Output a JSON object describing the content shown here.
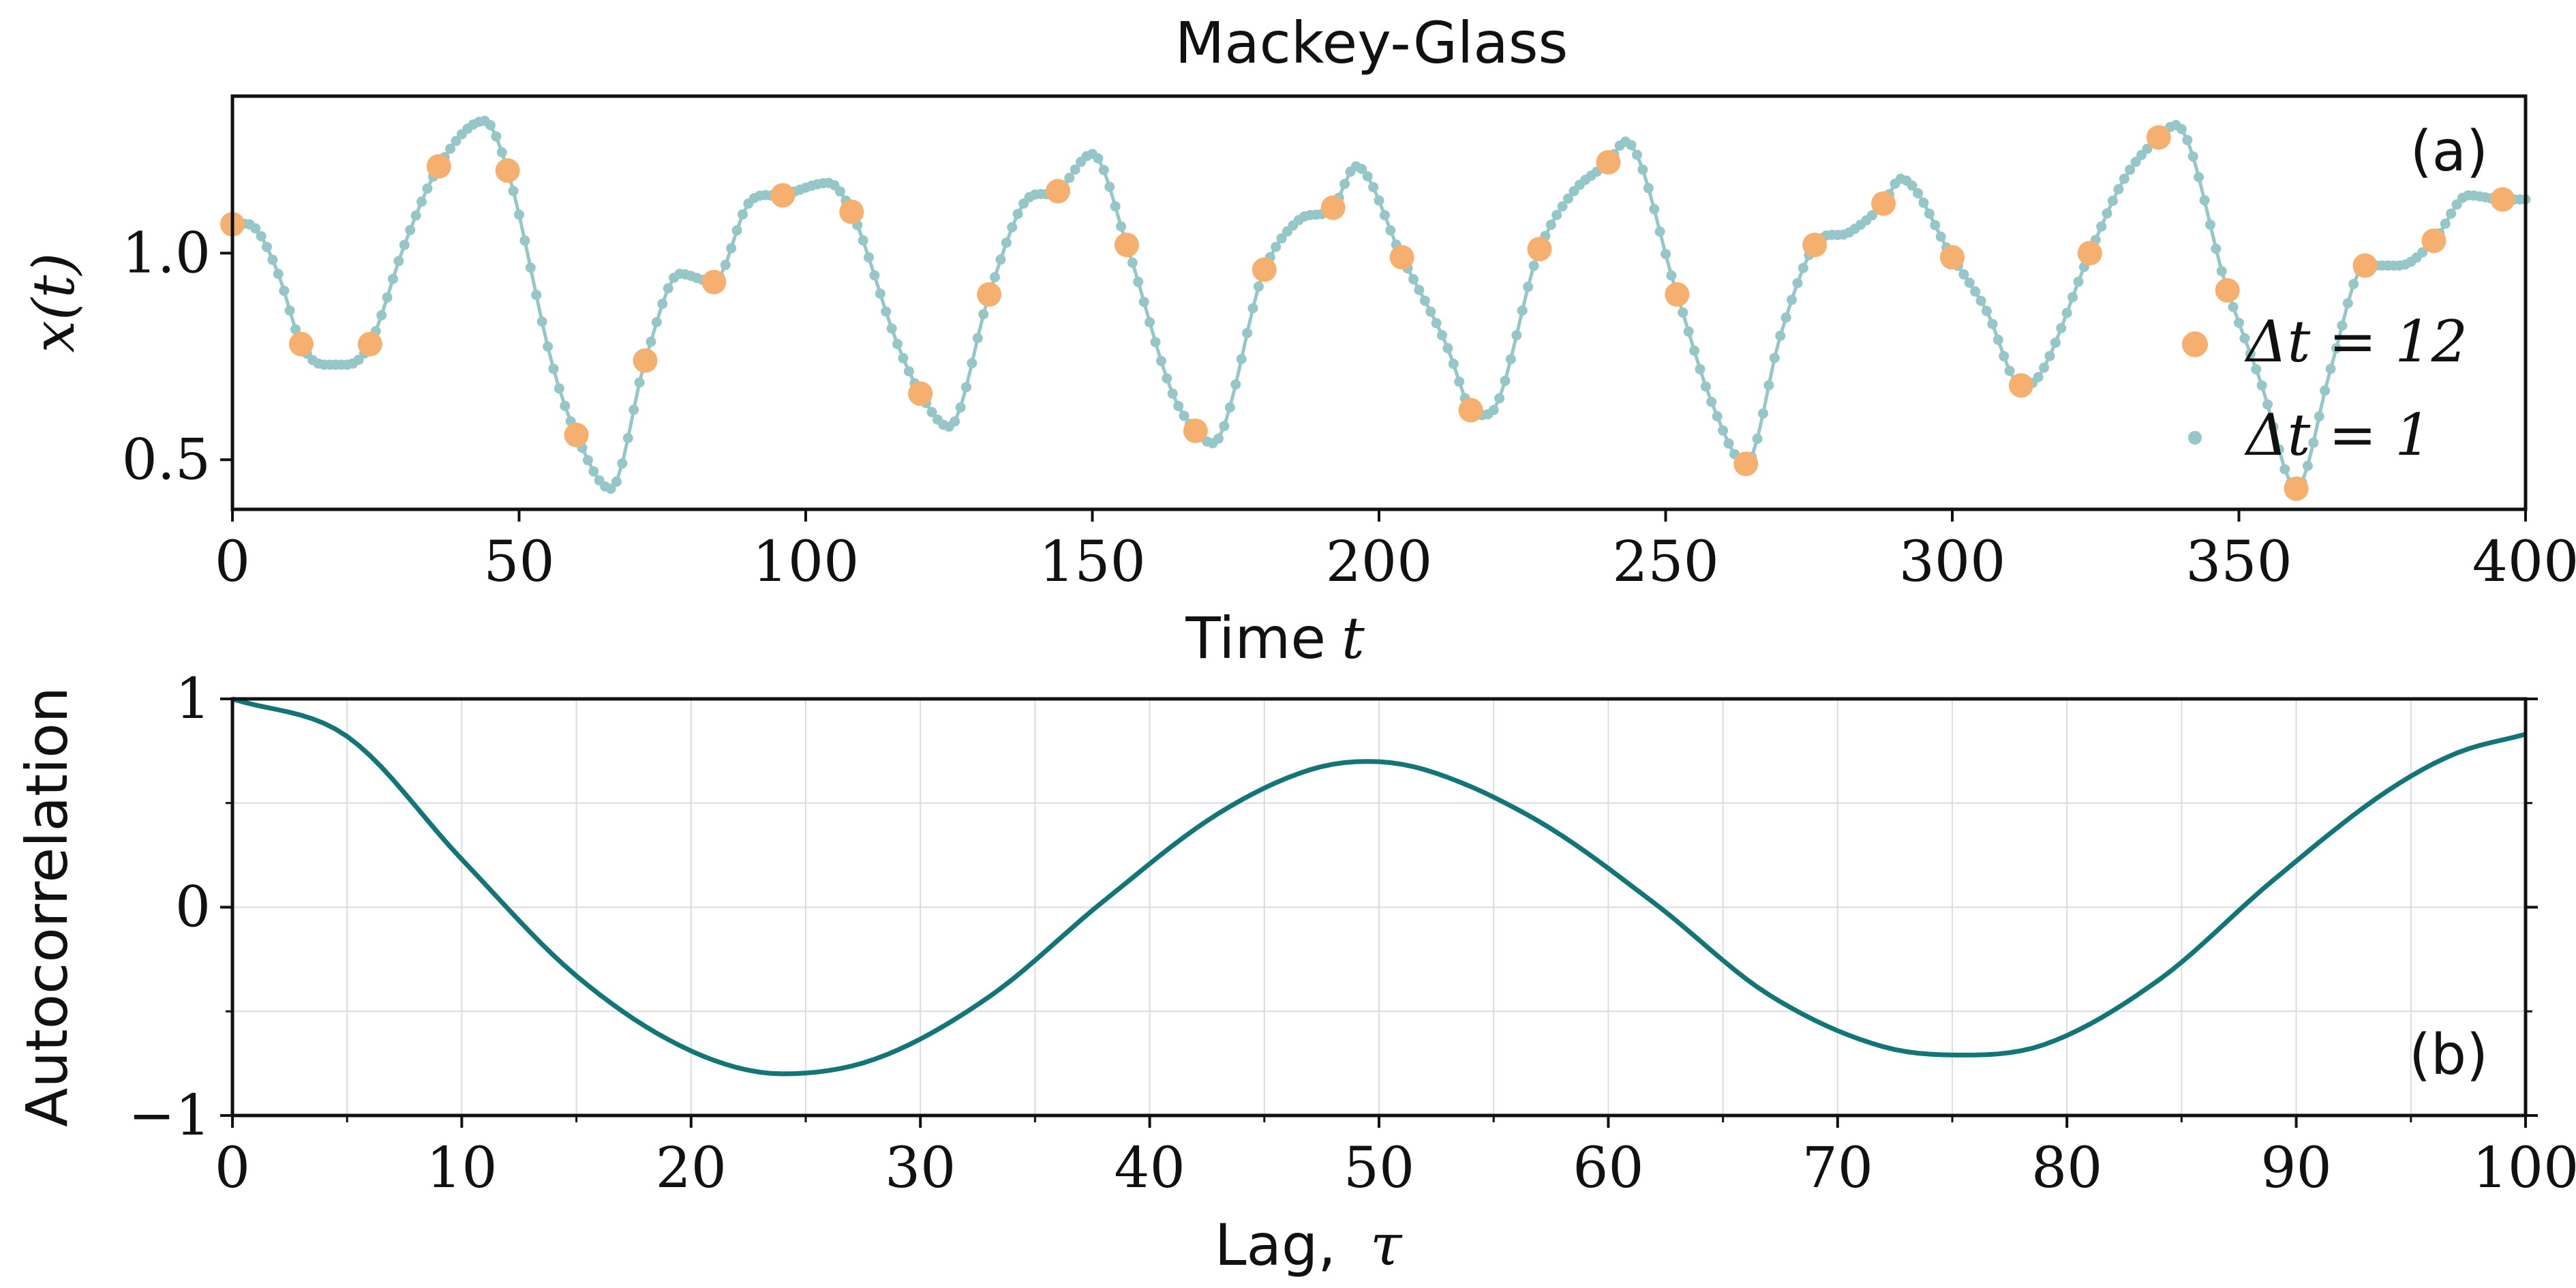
{
  "chart_data": [
    {
      "type": "scatter",
      "title": "Mackey-Glass",
      "panel_label": "(a)",
      "xlabel": "Time",
      "xlabel_var": "t",
      "ylabel": "x(t)",
      "xlim": [
        0,
        400
      ],
      "ylim": [
        0.38,
        1.38
      ],
      "xticks": [
        0,
        50,
        100,
        150,
        200,
        250,
        300,
        350,
        400
      ],
      "xtick_labels": [
        "0",
        "50",
        "100",
        "150",
        "200",
        "250",
        "300",
        "350",
        "400"
      ],
      "yticks": [
        0.5,
        1.0
      ],
      "ytick_labels": [
        "0.5",
        "1.0"
      ],
      "legend_position": "right",
      "series": [
        {
          "name": "Δt = 12",
          "legend_label": "Δt = 12",
          "color": "#f5b06f",
          "marker": "circle",
          "x": [
            0,
            12,
            24,
            36,
            48,
            60,
            72,
            84,
            96,
            108,
            120,
            132,
            144,
            156,
            168,
            180,
            192,
            204,
            216,
            228,
            240,
            252,
            264,
            276,
            288,
            300,
            312,
            324,
            336,
            348,
            360,
            372,
            384,
            396
          ],
          "y": [
            1.07,
            0.78,
            0.78,
            1.21,
            1.2,
            0.56,
            0.74,
            0.93,
            1.14,
            1.1,
            0.66,
            0.9,
            1.15,
            1.02,
            0.57,
            0.96,
            1.11,
            0.99,
            0.62,
            1.01,
            1.22,
            0.9,
            0.49,
            1.02,
            1.12,
            0.99,
            0.68,
            1.0,
            1.28,
            0.91,
            0.43,
            0.97,
            1.03,
            1.13
          ]
        },
        {
          "name": "Δt = 1",
          "legend_label": "Δt = 1",
          "color": "#96c7c8",
          "marker": "small-circle-line",
          "x_start": 0,
          "x_end": 400,
          "x_step": 1,
          "keypoints": [
            [
              0,
              1.07
            ],
            [
              4,
              1.06
            ],
            [
              8,
              0.95
            ],
            [
              12,
              0.78
            ],
            [
              16,
              0.73
            ],
            [
              20,
              0.73
            ],
            [
              24,
              0.78
            ],
            [
              30,
              1.02
            ],
            [
              36,
              1.21
            ],
            [
              44,
              1.32
            ],
            [
              48,
              1.2
            ],
            [
              56,
              0.72
            ],
            [
              60,
              0.56
            ],
            [
              66,
              0.43
            ],
            [
              72,
              0.74
            ],
            [
              78,
              0.95
            ],
            [
              84,
              0.93
            ],
            [
              90,
              1.12
            ],
            [
              96,
              1.14
            ],
            [
              104,
              1.17
            ],
            [
              108,
              1.1
            ],
            [
              116,
              0.78
            ],
            [
              120,
              0.66
            ],
            [
              125,
              0.58
            ],
            [
              132,
              0.9
            ],
            [
              138,
              1.12
            ],
            [
              144,
              1.15
            ],
            [
              150,
              1.24
            ],
            [
              156,
              1.02
            ],
            [
              164,
              0.66
            ],
            [
              168,
              0.57
            ],
            [
              171,
              0.54
            ],
            [
              180,
              0.96
            ],
            [
              186,
              1.08
            ],
            [
              192,
              1.11
            ],
            [
              196,
              1.21
            ],
            [
              204,
              0.99
            ],
            [
              212,
              0.77
            ],
            [
              216,
              0.62
            ],
            [
              219,
              0.61
            ],
            [
              228,
              1.01
            ],
            [
              234,
              1.15
            ],
            [
              240,
              1.22
            ],
            [
              243,
              1.27
            ],
            [
              252,
              0.9
            ],
            [
              258,
              0.64
            ],
            [
              264,
              0.49
            ],
            [
              270,
              0.8
            ],
            [
              276,
              1.02
            ],
            [
              282,
              1.05
            ],
            [
              288,
              1.12
            ],
            [
              291,
              1.18
            ],
            [
              300,
              0.99
            ],
            [
              306,
              0.86
            ],
            [
              312,
              0.68
            ],
            [
              315,
              0.7
            ],
            [
              324,
              1.0
            ],
            [
              330,
              1.18
            ],
            [
              336,
              1.28
            ],
            [
              339,
              1.31
            ],
            [
              348,
              0.91
            ],
            [
              354,
              0.68
            ],
            [
              360,
              0.43
            ],
            [
              366,
              0.72
            ],
            [
              372,
              0.97
            ],
            [
              378,
              0.97
            ],
            [
              384,
              1.03
            ],
            [
              390,
              1.14
            ],
            [
              396,
              1.13
            ],
            [
              400,
              1.13
            ]
          ]
        }
      ]
    },
    {
      "type": "line",
      "panel_label": "(b)",
      "xlabel": "Lag,",
      "xlabel_var": "τ",
      "ylabel": "Autocorrelation",
      "xlim": [
        0,
        100
      ],
      "ylim": [
        -1,
        1
      ],
      "xticks": [
        0,
        10,
        20,
        30,
        40,
        50,
        60,
        70,
        80,
        90,
        100
      ],
      "xtick_labels": [
        "0",
        "10",
        "20",
        "30",
        "40",
        "50",
        "60",
        "70",
        "80",
        "90",
        "100"
      ],
      "yticks": [
        -1,
        0,
        1
      ],
      "ytick_labels": [
        "−1",
        "0",
        "1"
      ],
      "grid": true,
      "series": [
        {
          "name": "autocorrelation",
          "color": "#127577",
          "x_step": 0.5,
          "keypoints": [
            [
              0,
              1.0
            ],
            [
              5,
              0.82
            ],
            [
              10,
              0.23
            ],
            [
              15,
              -0.33
            ],
            [
              20,
              -0.69
            ],
            [
              24,
              -0.8
            ],
            [
              28,
              -0.73
            ],
            [
              33,
              -0.43
            ],
            [
              38,
              0.03
            ],
            [
              43,
              0.45
            ],
            [
              47,
              0.66
            ],
            [
              49.5,
              0.7
            ],
            [
              52,
              0.66
            ],
            [
              57,
              0.41
            ],
            [
              62,
              0.02
            ],
            [
              67,
              -0.42
            ],
            [
              72,
              -0.67
            ],
            [
              75.5,
              -0.71
            ],
            [
              79,
              -0.66
            ],
            [
              84,
              -0.35
            ],
            [
              89,
              0.13
            ],
            [
              94,
              0.56
            ],
            [
              97,
              0.74
            ],
            [
              100,
              0.83
            ]
          ]
        }
      ]
    }
  ]
}
